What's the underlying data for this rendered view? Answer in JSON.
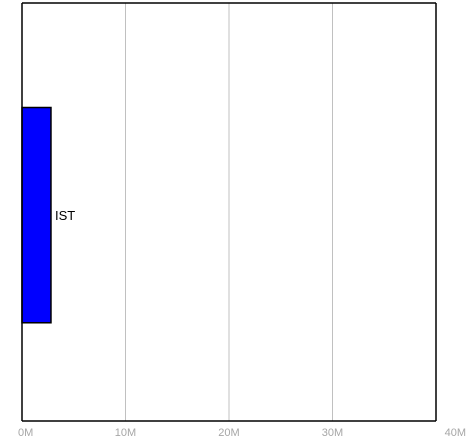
{
  "chart_data": {
    "type": "bar",
    "orientation": "horizontal",
    "categories": [
      "IST"
    ],
    "values": [
      2800000
    ],
    "xlim": [
      0,
      40000000
    ],
    "x_ticks": [
      0,
      10000000,
      20000000,
      30000000,
      40000000
    ],
    "x_tick_labels": [
      "0M",
      "10M",
      "20M",
      "30M",
      "40M"
    ],
    "grid": true,
    "title": "",
    "xlabel": "",
    "ylabel": "",
    "colors": {
      "bar": "#0000ff",
      "bar_outline": "#000000",
      "grid": "#c0c0c0",
      "axis": "#000000",
      "tick_label": "#a6a6a6"
    }
  }
}
